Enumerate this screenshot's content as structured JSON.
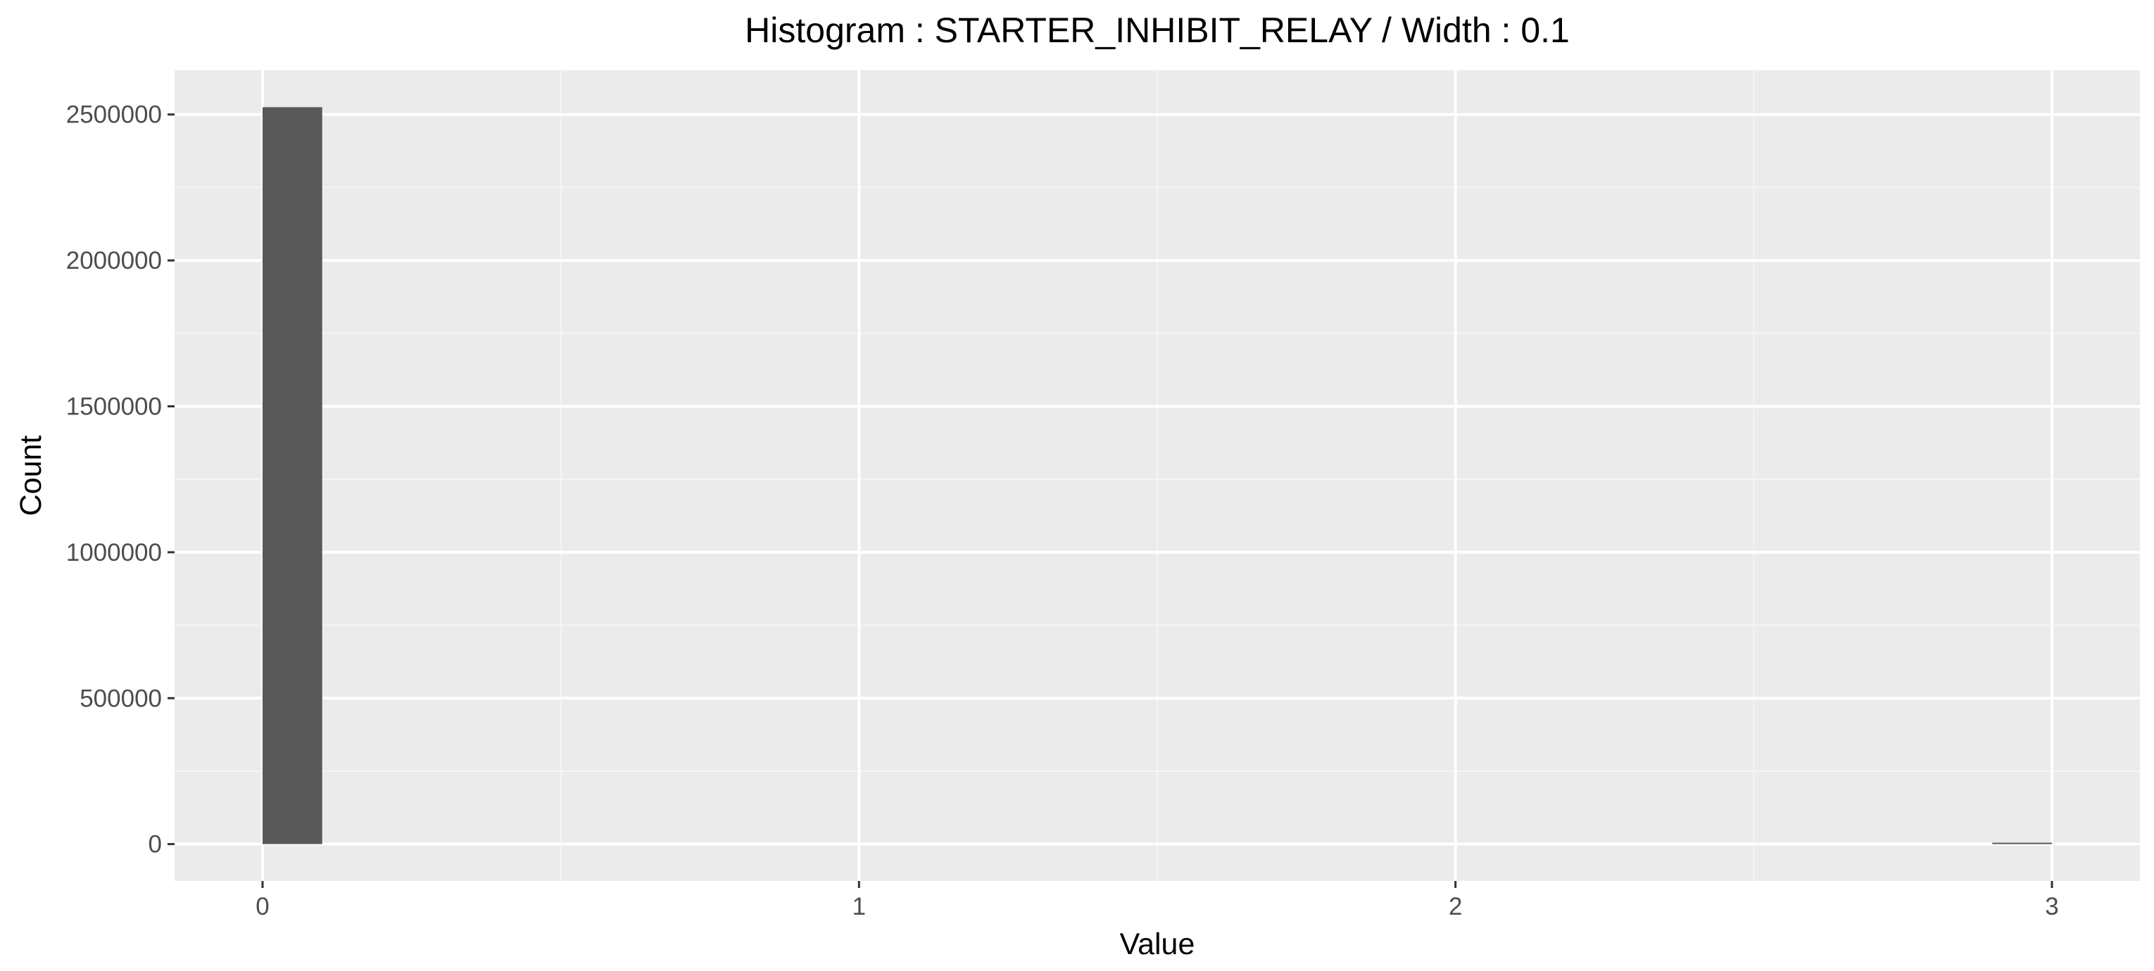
{
  "chart_data": {
    "type": "bar",
    "title": "Histogram : STARTER_INHIBIT_RELAY / Width : 0.1",
    "xlabel": "Value",
    "ylabel": "Count",
    "bin_width": 0.1,
    "bins": [
      {
        "x_start": 0.0,
        "x_end": 0.1,
        "count": 2525000
      },
      {
        "x_start": 2.9,
        "x_end": 3.0,
        "count": 2000
      }
    ],
    "xlim": [
      -0.1475,
      3.1475
    ],
    "ylim": [
      -126250,
      2651250
    ],
    "x_ticks": [
      0,
      1,
      2,
      3
    ],
    "x_tick_labels": [
      "0",
      "1",
      "2",
      "3"
    ],
    "x_minor_ticks": [
      0.5,
      1.5,
      2.5
    ],
    "y_ticks": [
      0,
      500000,
      1000000,
      1500000,
      2000000,
      2500000
    ],
    "y_tick_labels": [
      "0",
      "500000",
      "1000000",
      "1500000",
      "2000000",
      "2500000"
    ],
    "y_minor_ticks": [
      250000,
      750000,
      1250000,
      1750000,
      2250000
    ],
    "grid": true,
    "legend": "none",
    "colors": {
      "panel_background": "#ebebeb",
      "grid_major": "#ffffff",
      "grid_minor": "#f5f5f5",
      "bar_fill": "#595959",
      "tick_label": "#4d4d4d",
      "tick_mark": "#333333",
      "text": "#000000"
    }
  }
}
